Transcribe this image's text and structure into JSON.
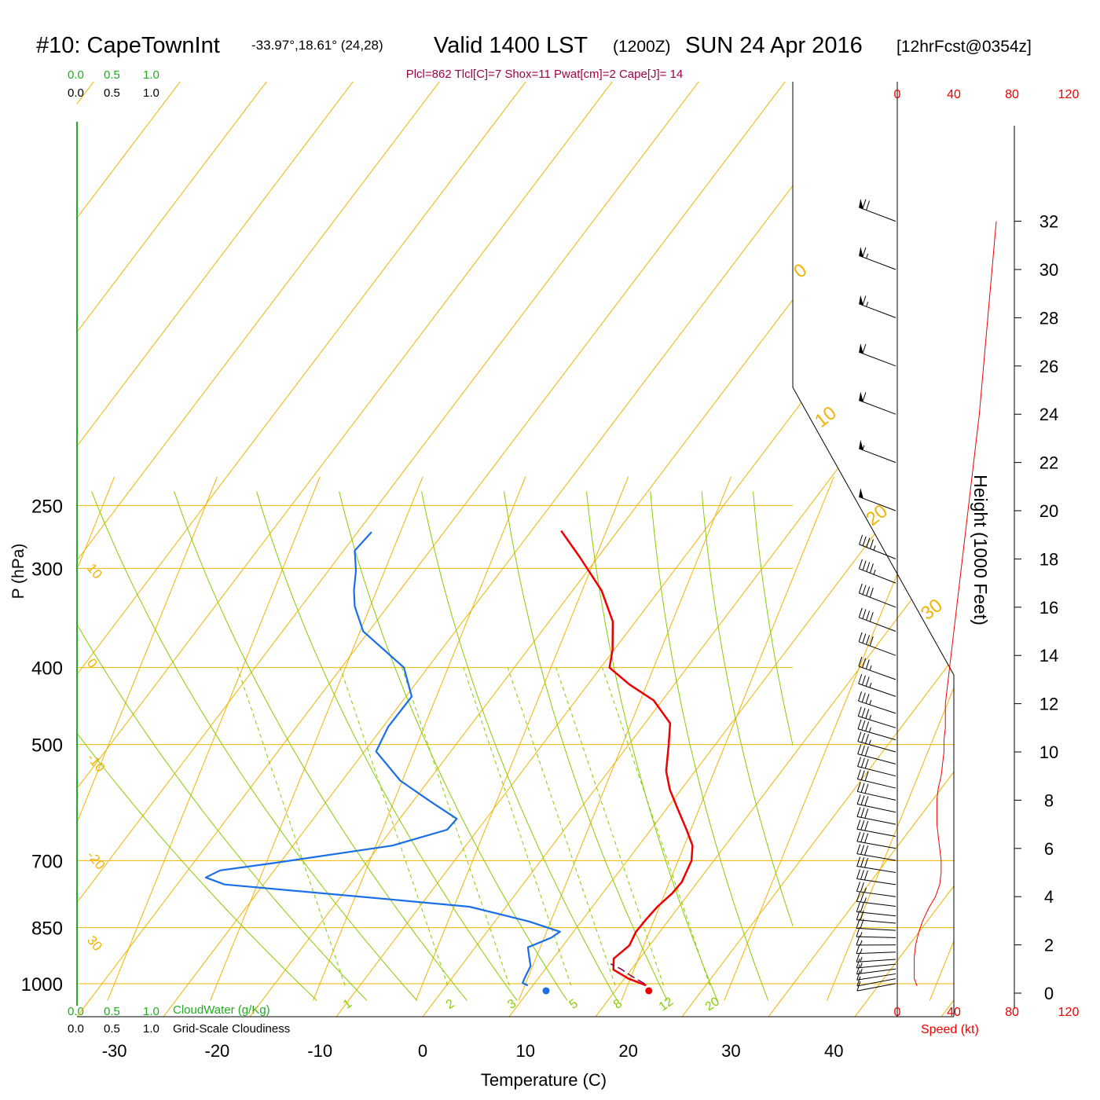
{
  "header": {
    "station": "#10: CapeTownInt",
    "coords": "-33.97°,18.61° (24,28)",
    "valid": "Valid 1400 LST",
    "zulu": "(1200Z)",
    "date": "SUN 24 Apr 2016",
    "forecast": "[12hrFcst@0354z]",
    "indices": "Plcl=862 Tlcl[C]=7 Shox=11 Pwat[cm]=2 Cape[J]= 14"
  },
  "colors": {
    "isotherm": "#f0b400",
    "mixing_ratio": "#88cc00",
    "adiabat": "#88cc00",
    "temperature": "#ee0000",
    "dewpoint": "#1a6ee8",
    "cloud_green": "#22aa22",
    "index_text": "#a0004a",
    "speed": "#ee0000"
  },
  "scale_labels": {
    "cloudwater_top": [
      "0.0",
      "0.5",
      "1.0"
    ],
    "cloudiness_top": [
      "0.0",
      "0.5",
      "1.0"
    ],
    "cloudwater_bottom": [
      "0.0",
      "0.5",
      "1.0"
    ],
    "cloudwater_title": "CloudWater (g/Kg)",
    "cloudiness_bottom": [
      "0.0",
      "0.5",
      "1.0"
    ],
    "cloudiness_title": "Grid-Scale Cloudiness"
  },
  "speed_axis": {
    "ticks": [
      "0",
      "40",
      "80",
      "120"
    ],
    "title": "Speed (kt)"
  },
  "chart_data": {
    "type": "line",
    "subtype": "skew-T log-P sounding",
    "xlabel": "Temperature (C)",
    "ylabel": "P (hPa)",
    "y2label": "Height (1000 Feet)",
    "x_ticks": [
      "-30",
      "-20",
      "-10",
      "0",
      "10",
      "20",
      "30",
      "40"
    ],
    "x_tick_values": [
      -30,
      -20,
      -10,
      0,
      10,
      20,
      30,
      40
    ],
    "xlim": [
      -33,
      36
    ],
    "y_ticks": [
      "250",
      "300",
      "400",
      "500",
      "700",
      "850",
      "1000"
    ],
    "y_tick_values": [
      250,
      300,
      400,
      500,
      700,
      850,
      1000
    ],
    "ylim": [
      1015,
      250
    ],
    "height_ticks": [
      "0",
      "2",
      "4",
      "6",
      "8",
      "10",
      "12",
      "14",
      "16",
      "18",
      "20",
      "22",
      "24",
      "26",
      "28",
      "30",
      "32"
    ],
    "height_tick_values": [
      0,
      2,
      4,
      6,
      8,
      10,
      12,
      14,
      16,
      18,
      20,
      22,
      24,
      26,
      28,
      30,
      32
    ],
    "height_ylim": [
      -0.3,
      33.4
    ],
    "isotherm_labels": [
      "-30",
      "-20",
      "-10",
      "0",
      "10",
      "20",
      "30"
    ],
    "isotherm_label_values": [
      -30,
      -20,
      -10,
      0,
      10,
      20,
      30
    ],
    "left_isotherm_labels": [
      {
        "label": "10",
        "t": 10,
        "p": 300
      },
      {
        "label": "0",
        "t": 0,
        "p": 395
      },
      {
        "label": "-10",
        "t": -10,
        "p": 520
      },
      {
        "label": "-20",
        "t": -20,
        "p": 690
      },
      {
        "label": "30",
        "t": 30,
        "p": 882
      }
    ],
    "right_isotherm_labels": [
      {
        "label": "0",
        "t": 0,
        "p": 350
      },
      {
        "label": "10",
        "t": 10,
        "p": 420
      },
      {
        "label": "20",
        "t": 20,
        "p": 485
      },
      {
        "label": "30",
        "t": 30,
        "p": 565
      }
    ],
    "mixing_ratio_labels": [
      "1",
      "2",
      "3",
      "5",
      "8",
      "12",
      "20"
    ],
    "mixing_ratio_values": [
      1,
      2,
      3,
      5,
      8,
      12,
      20
    ],
    "series": [
      {
        "name": "Temperature",
        "points": [
          {
            "t": 21.8,
            "p": 1005
          },
          {
            "t": 19.8,
            "p": 985
          },
          {
            "t": 18.0,
            "p": 960
          },
          {
            "t": 17.6,
            "p": 930
          },
          {
            "t": 18.6,
            "p": 895
          },
          {
            "t": 18.7,
            "p": 860
          },
          {
            "t": 19.2,
            "p": 830
          },
          {
            "t": 19.8,
            "p": 800
          },
          {
            "t": 20.7,
            "p": 770
          },
          {
            "t": 21.2,
            "p": 745
          },
          {
            "t": 21.3,
            "p": 700
          },
          {
            "t": 20.8,
            "p": 670
          },
          {
            "t": 19.6,
            "p": 640
          },
          {
            "t": 17.8,
            "p": 600
          },
          {
            "t": 16.4,
            "p": 570
          },
          {
            "t": 15.3,
            "p": 540
          },
          {
            "t": 14.5,
            "p": 500
          },
          {
            "t": 13.8,
            "p": 470
          },
          {
            "t": 11.3,
            "p": 440
          },
          {
            "t": 8.3,
            "p": 420
          },
          {
            "t": 5.7,
            "p": 400
          },
          {
            "t": 5.3,
            "p": 380
          },
          {
            "t": 4.2,
            "p": 350
          },
          {
            "t": 1.9,
            "p": 320
          },
          {
            "t": -1.6,
            "p": 290
          },
          {
            "t": -4.4,
            "p": 269
          }
        ]
      },
      {
        "name": "Dewpoint",
        "points": [
          {
            "t": 10.3,
            "p": 1005
          },
          {
            "t": 9.7,
            "p": 998
          },
          {
            "t": 9.7,
            "p": 980
          },
          {
            "t": 9.8,
            "p": 950
          },
          {
            "t": 9.3,
            "p": 925
          },
          {
            "t": 8.8,
            "p": 900
          },
          {
            "t": 10.7,
            "p": 875
          },
          {
            "t": 11.3,
            "p": 860
          },
          {
            "t": 7.9,
            "p": 835
          },
          {
            "t": 1.5,
            "p": 800
          },
          {
            "t": -5.6,
            "p": 785
          },
          {
            "t": -23.2,
            "p": 750
          },
          {
            "t": -25.3,
            "p": 735
          },
          {
            "t": -24.2,
            "p": 720
          },
          {
            "t": -19.3,
            "p": 705
          },
          {
            "t": -8.4,
            "p": 670
          },
          {
            "t": -3.7,
            "p": 640
          },
          {
            "t": -3.2,
            "p": 620
          },
          {
            "t": -6.4,
            "p": 590
          },
          {
            "t": -10.2,
            "p": 555
          },
          {
            "t": -13.7,
            "p": 510
          },
          {
            "t": -13.5,
            "p": 475
          },
          {
            "t": -12.4,
            "p": 435
          },
          {
            "t": -14.3,
            "p": 400
          },
          {
            "t": -19.7,
            "p": 360
          },
          {
            "t": -21.5,
            "p": 335
          },
          {
            "t": -22.2,
            "p": 320
          },
          {
            "t": -22.8,
            "p": 302
          },
          {
            "t": -23.7,
            "p": 285
          },
          {
            "t": -22.8,
            "p": 270
          }
        ]
      }
    ],
    "lifted_parcel": [
      {
        "t": 21.6,
        "p": 1000
      },
      {
        "t": 20.0,
        "p": 978
      },
      {
        "t": 18.7,
        "p": 958
      },
      {
        "t": 17.5,
        "p": 944
      }
    ],
    "surface_temperature": 22,
    "surface_dewpoint": 12,
    "wind_profile": {
      "heights": [
        0.3,
        0.6,
        1.0,
        1.5,
        2.0,
        2.5,
        3.0,
        3.5,
        4.0,
        4.5,
        5.0,
        5.5,
        6.0,
        6.5,
        7.0,
        7.5,
        8.0,
        8.5,
        9.0,
        9.5,
        10.0,
        10.5,
        11.0,
        11.5,
        12.0,
        12.5,
        13.0,
        14.0,
        15.0,
        16.0,
        17.0,
        18.0,
        20.0,
        22.0,
        24.0,
        26.0,
        28.0,
        30.0,
        32.0
      ],
      "speeds": [
        14,
        12,
        12,
        12,
        13,
        15,
        18,
        22,
        27,
        30,
        31,
        31,
        30,
        29,
        28,
        28,
        28,
        29,
        31,
        32,
        33,
        33,
        34,
        34,
        34,
        35,
        36,
        38,
        40,
        42,
        44,
        46,
        50,
        54,
        58,
        61,
        64,
        67,
        70
      ]
    },
    "wind_barbs": [
      {
        "z": 0.4,
        "dir": 195,
        "spd": 12
      },
      {
        "z": 0.6,
        "dir": 195,
        "spd": 12
      },
      {
        "z": 0.8,
        "dir": 200,
        "spd": 12
      },
      {
        "z": 1.0,
        "dir": 205,
        "spd": 13
      },
      {
        "z": 1.2,
        "dir": 210,
        "spd": 13
      },
      {
        "z": 1.4,
        "dir": 215,
        "spd": 14
      },
      {
        "z": 1.7,
        "dir": 220,
        "spd": 14
      },
      {
        "z": 2.0,
        "dir": 225,
        "spd": 15
      },
      {
        "z": 2.3,
        "dir": 230,
        "spd": 16
      },
      {
        "z": 2.6,
        "dir": 235,
        "spd": 18
      },
      {
        "z": 2.9,
        "dir": 240,
        "spd": 20
      },
      {
        "z": 3.2,
        "dir": 243,
        "spd": 22
      },
      {
        "z": 3.6,
        "dir": 246,
        "spd": 25
      },
      {
        "z": 4.0,
        "dir": 248,
        "spd": 27
      },
      {
        "z": 4.5,
        "dir": 250,
        "spd": 30
      },
      {
        "z": 5.0,
        "dir": 252,
        "spd": 31
      },
      {
        "z": 5.5,
        "dir": 254,
        "spd": 31
      },
      {
        "z": 6.0,
        "dir": 255,
        "spd": 30
      },
      {
        "z": 6.5,
        "dir": 256,
        "spd": 29
      },
      {
        "z": 7.0,
        "dir": 258,
        "spd": 28
      },
      {
        "z": 7.5,
        "dir": 260,
        "spd": 28
      },
      {
        "z": 8.0,
        "dir": 262,
        "spd": 28
      },
      {
        "z": 8.5,
        "dir": 264,
        "spd": 29
      },
      {
        "z": 9.0,
        "dir": 266,
        "spd": 31
      },
      {
        "z": 9.5,
        "dir": 268,
        "spd": 32
      },
      {
        "z": 10.0,
        "dir": 270,
        "spd": 33
      },
      {
        "z": 10.5,
        "dir": 272,
        "spd": 33
      },
      {
        "z": 11.0,
        "dir": 275,
        "spd": 34
      },
      {
        "z": 11.6,
        "dir": 278,
        "spd": 34
      },
      {
        "z": 12.3,
        "dir": 280,
        "spd": 35
      },
      {
        "z": 13.0,
        "dir": 282,
        "spd": 36
      },
      {
        "z": 14.0,
        "dir": 284,
        "spd": 38
      },
      {
        "z": 15.0,
        "dir": 285,
        "spd": 40
      },
      {
        "z": 16.0,
        "dir": 286,
        "spd": 42
      },
      {
        "z": 17.0,
        "dir": 287,
        "spd": 44
      },
      {
        "z": 18.0,
        "dir": 288,
        "spd": 46
      },
      {
        "z": 20.0,
        "dir": 285,
        "spd": 50
      },
      {
        "z": 22.0,
        "dir": 285,
        "spd": 54
      },
      {
        "z": 24.0,
        "dir": 285,
        "spd": 58
      },
      {
        "z": 26.0,
        "dir": 285,
        "spd": 61
      },
      {
        "z": 28.0,
        "dir": 285,
        "spd": 64
      },
      {
        "z": 30.0,
        "dir": 285,
        "spd": 67
      },
      {
        "z": 32.0,
        "dir": 285,
        "spd": 70
      }
    ]
  }
}
